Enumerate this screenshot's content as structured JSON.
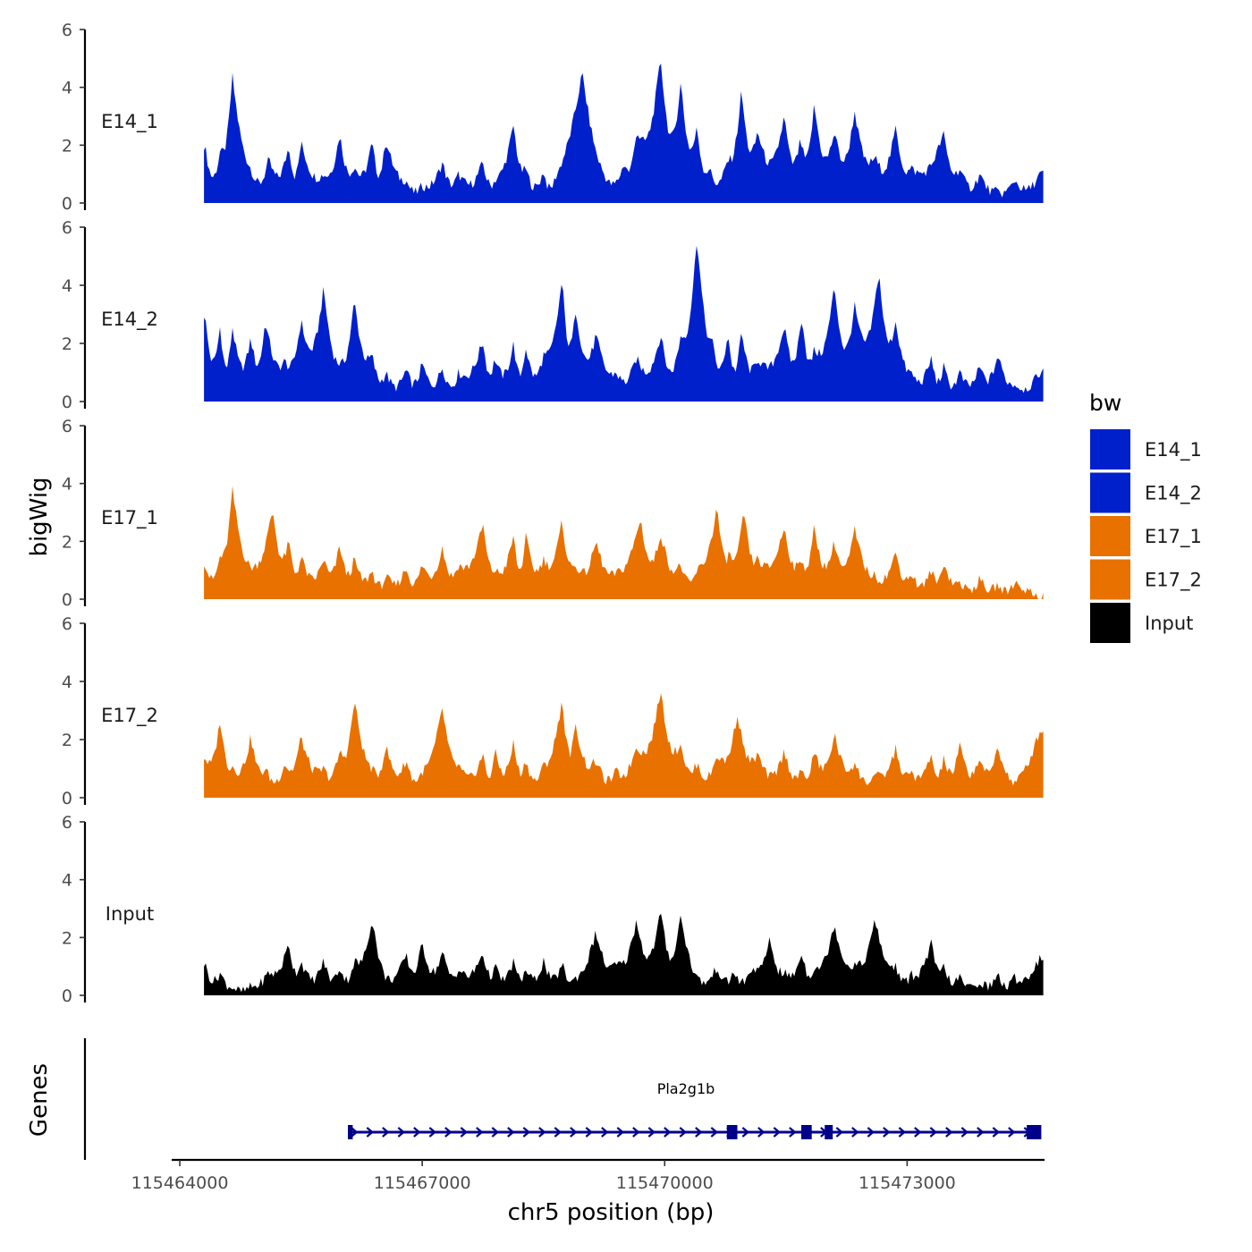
{
  "chart_data": {
    "type": "area",
    "xlabel": "chr5 position (bp)",
    "ylabel": "bigWig",
    "genes_label": "Genes",
    "xlim": [
      115463900,
      115474700
    ],
    "x_ticks": [
      115464000,
      115467000,
      115470000,
      115473000
    ],
    "x_tick_labels": [
      "115464000",
      "115467000",
      "115470000",
      "115473000"
    ],
    "ylim": [
      0,
      6
    ],
    "y_ticks": [
      0,
      2,
      4,
      6
    ],
    "y_tick_labels": [
      "0",
      "2",
      "4",
      "6"
    ],
    "data_range": [
      115464300,
      115474700
    ],
    "legend": {
      "title": "bw",
      "position": "right",
      "entries": [
        {
          "label": "E14_1",
          "color": "#0020CC"
        },
        {
          "label": "E14_2",
          "color": "#0020CC"
        },
        {
          "label": "E17_1",
          "color": "#E87100"
        },
        {
          "label": "E17_2",
          "color": "#E87100"
        },
        {
          "label": "Input",
          "color": "#000000"
        }
      ]
    },
    "series": [
      {
        "name": "E14_1",
        "color": "#0020CC",
        "peaks": [
          [
            115464310,
            2.0
          ],
          [
            115464500,
            1.8
          ],
          [
            115464650,
            4.4
          ],
          [
            115464880,
            1.2
          ],
          [
            115465100,
            1.5
          ],
          [
            115465350,
            2.0
          ],
          [
            115465500,
            2.1
          ],
          [
            115465780,
            1.0
          ],
          [
            115465980,
            2.4
          ],
          [
            115466160,
            1.3
          ],
          [
            115466380,
            2.1
          ],
          [
            115466550,
            2.2
          ],
          [
            115466800,
            0.8
          ],
          [
            115467000,
            0.6
          ],
          [
            115467250,
            1.4
          ],
          [
            115467450,
            1.0
          ],
          [
            115467750,
            1.4
          ],
          [
            115467900,
            0.8
          ],
          [
            115468130,
            2.7
          ],
          [
            115468280,
            1.2
          ],
          [
            115468500,
            1.1
          ],
          [
            115468650,
            0.9
          ],
          [
            115468980,
            4.5
          ],
          [
            115469250,
            1.0
          ],
          [
            115469500,
            1.4
          ],
          [
            115469650,
            2.5
          ],
          [
            115469950,
            5.0
          ],
          [
            115470200,
            4.2
          ],
          [
            115470400,
            2.6
          ],
          [
            115470550,
            1.2
          ],
          [
            115470780,
            1.5
          ],
          [
            115470950,
            3.9
          ],
          [
            115471150,
            2.5
          ],
          [
            115471480,
            3.0
          ],
          [
            115471680,
            2.2
          ],
          [
            115471850,
            3.4
          ],
          [
            115472100,
            2.5
          ],
          [
            115472350,
            3.2
          ],
          [
            115472600,
            1.6
          ],
          [
            115472860,
            2.6
          ],
          [
            115473050,
            1.2
          ],
          [
            115473450,
            2.4
          ],
          [
            115473650,
            1.2
          ],
          [
            115473900,
            1.0
          ],
          [
            115474110,
            0.4
          ],
          [
            115474330,
            0.8
          ],
          [
            115474640,
            1.0
          ]
        ]
      },
      {
        "name": "E14_2",
        "color": "#0020CC",
        "peaks": [
          [
            115464310,
            3.0
          ],
          [
            115464500,
            2.6
          ],
          [
            115464650,
            2.6
          ],
          [
            115464880,
            2.2
          ],
          [
            115465060,
            2.8
          ],
          [
            115465300,
            1.4
          ],
          [
            115465500,
            2.8
          ],
          [
            115465780,
            3.9
          ],
          [
            115465980,
            1.3
          ],
          [
            115466160,
            3.5
          ],
          [
            115466380,
            1.6
          ],
          [
            115466550,
            1.0
          ],
          [
            115466800,
            1.1
          ],
          [
            115467000,
            1.3
          ],
          [
            115467250,
            1.2
          ],
          [
            115467450,
            1.0
          ],
          [
            115467750,
            2.1
          ],
          [
            115467900,
            1.5
          ],
          [
            115468130,
            2.0
          ],
          [
            115468280,
            1.9
          ],
          [
            115468500,
            1.6
          ],
          [
            115468730,
            4.2
          ],
          [
            115468900,
            3.2
          ],
          [
            115469150,
            2.3
          ],
          [
            115469400,
            1.0
          ],
          [
            115469650,
            1.5
          ],
          [
            115469950,
            2.3
          ],
          [
            115470200,
            2.3
          ],
          [
            115470400,
            5.7
          ],
          [
            115470600,
            2.0
          ],
          [
            115470780,
            2.4
          ],
          [
            115470950,
            2.4
          ],
          [
            115471150,
            1.5
          ],
          [
            115471480,
            2.6
          ],
          [
            115471700,
            3.0
          ],
          [
            115471850,
            1.8
          ],
          [
            115472100,
            4.0
          ],
          [
            115472350,
            3.3
          ],
          [
            115472650,
            4.5
          ],
          [
            115472860,
            2.8
          ],
          [
            115473050,
            1.0
          ],
          [
            115473300,
            1.5
          ],
          [
            115473450,
            1.2
          ],
          [
            115473650,
            1.0
          ],
          [
            115473900,
            1.2
          ],
          [
            115474120,
            1.6
          ],
          [
            115474330,
            0.6
          ],
          [
            115474640,
            1.0
          ]
        ]
      },
      {
        "name": "E17_1",
        "color": "#E87100",
        "peaks": [
          [
            115464310,
            1.3
          ],
          [
            115464500,
            1.5
          ],
          [
            115464650,
            3.8
          ],
          [
            115464880,
            1.1
          ],
          [
            115465150,
            3.1
          ],
          [
            115465350,
            2.0
          ],
          [
            115465500,
            1.5
          ],
          [
            115465780,
            1.4
          ],
          [
            115465980,
            1.9
          ],
          [
            115466160,
            1.4
          ],
          [
            115466380,
            1.0
          ],
          [
            115466550,
            0.8
          ],
          [
            115466800,
            1.1
          ],
          [
            115467000,
            1.2
          ],
          [
            115467250,
            1.8
          ],
          [
            115467450,
            1.2
          ],
          [
            115467750,
            2.6
          ],
          [
            115467900,
            1.0
          ],
          [
            115468130,
            2.2
          ],
          [
            115468280,
            2.2
          ],
          [
            115468500,
            1.4
          ],
          [
            115468730,
            2.7
          ],
          [
            115468900,
            1.2
          ],
          [
            115469150,
            2.0
          ],
          [
            115469400,
            0.9
          ],
          [
            115469700,
            2.8
          ],
          [
            115469950,
            2.3
          ],
          [
            115470200,
            1.2
          ],
          [
            115470400,
            1.0
          ],
          [
            115470650,
            3.2
          ],
          [
            115470800,
            1.6
          ],
          [
            115470980,
            3.1
          ],
          [
            115471150,
            1.4
          ],
          [
            115471480,
            2.5
          ],
          [
            115471700,
            1.4
          ],
          [
            115471850,
            2.5
          ],
          [
            115472100,
            2.0
          ],
          [
            115472350,
            2.4
          ],
          [
            115472600,
            0.8
          ],
          [
            115472860,
            1.6
          ],
          [
            115473050,
            0.9
          ],
          [
            115473300,
            1.0
          ],
          [
            115473450,
            1.3
          ],
          [
            115473650,
            0.6
          ],
          [
            115473900,
            0.7
          ],
          [
            115474120,
            0.5
          ],
          [
            115474330,
            0.6
          ],
          [
            115474640,
            0.1
          ]
        ]
      },
      {
        "name": "E17_2",
        "color": "#E87100",
        "peaks": [
          [
            115464310,
            1.4
          ],
          [
            115464500,
            2.7
          ],
          [
            115464650,
            1.1
          ],
          [
            115464880,
            2.1
          ],
          [
            115465060,
            1.0
          ],
          [
            115465300,
            1.2
          ],
          [
            115465500,
            2.1
          ],
          [
            115465780,
            1.0
          ],
          [
            115465980,
            1.6
          ],
          [
            115466160,
            3.4
          ],
          [
            115466380,
            1.0
          ],
          [
            115466550,
            1.8
          ],
          [
            115466800,
            1.3
          ],
          [
            115467000,
            0.9
          ],
          [
            115467250,
            3.1
          ],
          [
            115467450,
            1.1
          ],
          [
            115467750,
            1.5
          ],
          [
            115467900,
            1.6
          ],
          [
            115468130,
            1.9
          ],
          [
            115468280,
            1.3
          ],
          [
            115468500,
            1.1
          ],
          [
            115468730,
            3.4
          ],
          [
            115468900,
            2.5
          ],
          [
            115469150,
            1.3
          ],
          [
            115469400,
            0.9
          ],
          [
            115469650,
            1.8
          ],
          [
            115469950,
            3.7
          ],
          [
            115470200,
            1.9
          ],
          [
            115470400,
            1.2
          ],
          [
            115470650,
            1.5
          ],
          [
            115470900,
            2.9
          ],
          [
            115471150,
            1.5
          ],
          [
            115471480,
            1.6
          ],
          [
            115471700,
            0.9
          ],
          [
            115471850,
            1.6
          ],
          [
            115472100,
            2.2
          ],
          [
            115472350,
            1.2
          ],
          [
            115472600,
            0.8
          ],
          [
            115472860,
            1.7
          ],
          [
            115473050,
            0.9
          ],
          [
            115473300,
            1.5
          ],
          [
            115473450,
            1.4
          ],
          [
            115473650,
            1.8
          ],
          [
            115473900,
            1.4
          ],
          [
            115474120,
            1.8
          ],
          [
            115474330,
            0.5
          ],
          [
            115474640,
            2.3
          ]
        ]
      },
      {
        "name": "Input",
        "color": "#000000",
        "peaks": [
          [
            115464310,
            1.1
          ],
          [
            115464500,
            0.8
          ],
          [
            115464650,
            0.3
          ],
          [
            115464880,
            0.3
          ],
          [
            115465100,
            0.8
          ],
          [
            115465350,
            1.8
          ],
          [
            115465500,
            1.2
          ],
          [
            115465780,
            1.2
          ],
          [
            115465980,
            1.0
          ],
          [
            115466160,
            1.2
          ],
          [
            115466380,
            2.7
          ],
          [
            115466550,
            0.6
          ],
          [
            115466800,
            1.4
          ],
          [
            115467000,
            1.8
          ],
          [
            115467250,
            1.5
          ],
          [
            115467450,
            0.9
          ],
          [
            115467750,
            1.5
          ],
          [
            115467900,
            1.0
          ],
          [
            115468130,
            1.2
          ],
          [
            115468280,
            0.9
          ],
          [
            115468500,
            1.2
          ],
          [
            115468730,
            1.1
          ],
          [
            115468900,
            0.6
          ],
          [
            115469150,
            2.2
          ],
          [
            115469400,
            1.1
          ],
          [
            115469650,
            2.6
          ],
          [
            115469950,
            2.9
          ],
          [
            115470200,
            2.8
          ],
          [
            115470400,
            0.6
          ],
          [
            115470650,
            1.0
          ],
          [
            115470850,
            0.8
          ],
          [
            115471100,
            1.0
          ],
          [
            115471300,
            2.0
          ],
          [
            115471480,
            0.8
          ],
          [
            115471700,
            1.5
          ],
          [
            115471850,
            1.0
          ],
          [
            115472100,
            2.5
          ],
          [
            115472350,
            1.1
          ],
          [
            115472600,
            2.6
          ],
          [
            115472860,
            1.0
          ],
          [
            115473050,
            0.7
          ],
          [
            115473300,
            1.8
          ],
          [
            115473450,
            1.0
          ],
          [
            115473650,
            0.6
          ],
          [
            115473900,
            0.5
          ],
          [
            115474120,
            0.7
          ],
          [
            115474330,
            0.6
          ],
          [
            115474640,
            1.3
          ]
        ]
      }
    ],
    "gene": {
      "name": "Pla2g1b",
      "strand": "+",
      "start": 115466100,
      "end": 115474650,
      "exons": [
        [
          115466080,
          115466140
        ],
        [
          115470770,
          115470900
        ],
        [
          115471690,
          115471820
        ],
        [
          115471980,
          115472080
        ],
        [
          115474480,
          115474660
        ]
      ]
    }
  }
}
